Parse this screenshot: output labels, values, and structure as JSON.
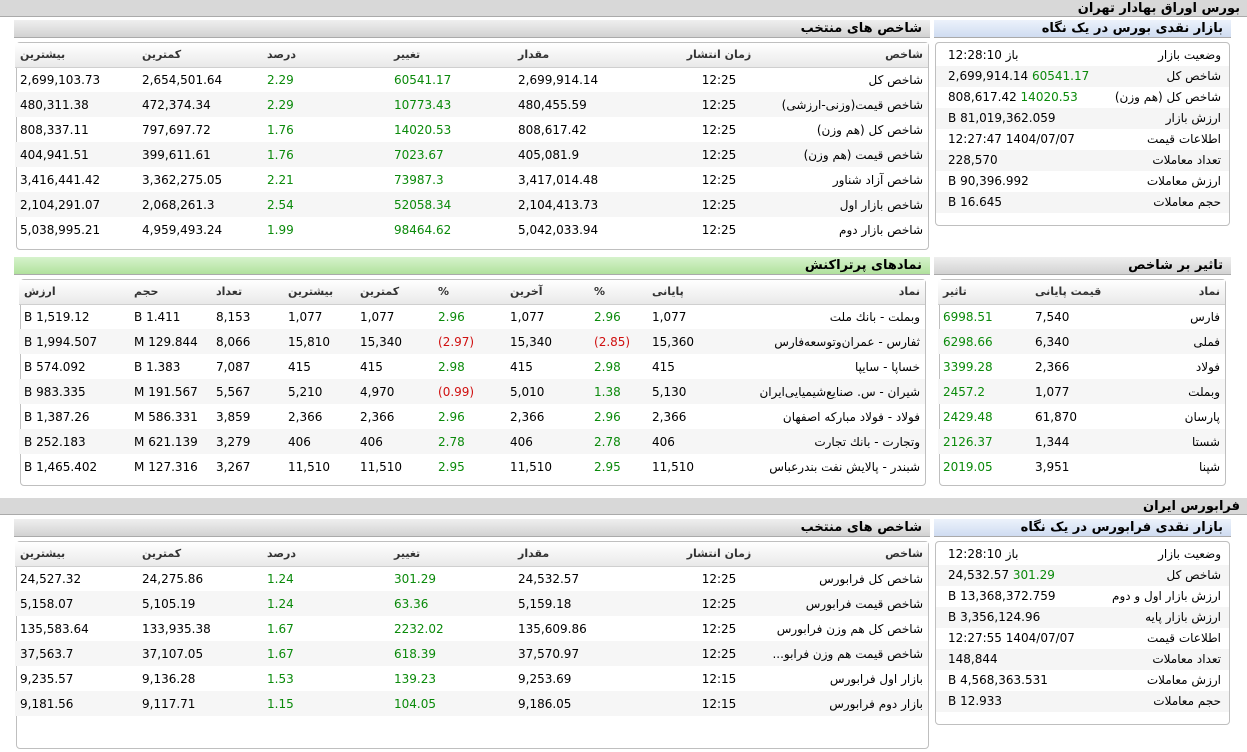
{
  "colors": {
    "positive": "#0a8a0a",
    "negative": "#d01010",
    "header_green": "#b1e19d",
    "header_blue": "#cfdcf1"
  },
  "tse": {
    "section_title": "بورس اوراق بهادار تهران",
    "indices": {
      "title": "شاخص های منتخب",
      "headers": {
        "name": "شاخص",
        "time": "زمان انتشار",
        "value": "مقدار",
        "change": "تغییر",
        "percent": "درصد",
        "min": "کمترین",
        "max": "بیشترین"
      },
      "rows": [
        {
          "name": "شاخص کل",
          "time": "12:25",
          "value": "2,699,914.14",
          "change": "60541.17",
          "percent": "2.29",
          "min": "2,654,501.64",
          "max": "2,699,103.73"
        },
        {
          "name": "شاخص قیمت(وزنی-ارزشی)",
          "time": "12:25",
          "value": "480,455.59",
          "change": "10773.43",
          "percent": "2.29",
          "min": "472,374.34",
          "max": "480,311.38"
        },
        {
          "name": "شاخص کل (هم وزن)",
          "time": "12:25",
          "value": "808,617.42",
          "change": "14020.53",
          "percent": "1.76",
          "min": "797,697.72",
          "max": "808,337.11"
        },
        {
          "name": "شاخص قیمت (هم وزن)",
          "time": "12:25",
          "value": "405,081.9",
          "change": "7023.67",
          "percent": "1.76",
          "min": "399,611.61",
          "max": "404,941.51"
        },
        {
          "name": "شاخص آزاد شناور",
          "time": "12:25",
          "value": "3,417,014.48",
          "change": "73987.3",
          "percent": "2.21",
          "min": "3,362,275.05",
          "max": "3,416,441.42"
        },
        {
          "name": "شاخص بازار اول",
          "time": "12:25",
          "value": "2,104,413.73",
          "change": "52058.34",
          "percent": "2.54",
          "min": "2,068,261.3",
          "max": "2,104,291.07"
        },
        {
          "name": "شاخص بازار دوم",
          "time": "12:25",
          "value": "5,042,033.94",
          "change": "98464.62",
          "percent": "1.99",
          "min": "4,959,493.24",
          "max": "5,038,995.21"
        }
      ]
    },
    "glance": {
      "title": "بازار نقدی بورس در یک نگاه",
      "rows": [
        {
          "label": "وضعیت بازار",
          "value": "باز 12:28:10",
          "change": ""
        },
        {
          "label": "شاخص کل",
          "value": "2,699,914.14",
          "change": "60541.17"
        },
        {
          "label": "شاخص کل (هم وزن)",
          "value": "808,617.42",
          "change": "14020.53"
        },
        {
          "label": "ارزش بازار",
          "value": "81,019,362.059 B",
          "change": ""
        },
        {
          "label": "اطلاعات قیمت",
          "value": "1404/07/07 12:27:47",
          "change": ""
        },
        {
          "label": "تعداد معاملات",
          "value": "228,570",
          "change": ""
        },
        {
          "label": "ارزش معاملات",
          "value": "90,396.992 B",
          "change": ""
        },
        {
          "label": "حجم معاملات",
          "value": "16.645 B",
          "change": ""
        }
      ]
    },
    "symbols": {
      "title": "نمادهای پرتراکنش",
      "headers": {
        "symbol": "نماد",
        "close": "پایانی",
        "close_pct": "%",
        "last": "آخرین",
        "last_pct": "%",
        "min": "کمترین",
        "max": "بیشترین",
        "count": "تعداد",
        "volume": "حجم",
        "value": "ارزش"
      },
      "rows": [
        {
          "symbol": "وبملت - بانك ملت",
          "close": "1,077",
          "close_pct": "2.96",
          "close_neg": false,
          "last": "1,077",
          "last_pct": "2.96",
          "last_neg": false,
          "min": "1,077",
          "max": "1,077",
          "count": "8,153",
          "volume": "1.411 B",
          "value": "1,519.12 B"
        },
        {
          "symbol": "ثفارس - عمران‌وتوسعه‌فارس",
          "close": "15,360",
          "close_pct": "(2.85)",
          "close_neg": true,
          "last": "15,340",
          "last_pct": "(2.97)",
          "last_neg": true,
          "min": "15,340",
          "max": "15,810",
          "count": "8,066",
          "volume": "129.844 M",
          "value": "1,994.507 B"
        },
        {
          "symbol": "خساپا - سايپا",
          "close": "415",
          "close_pct": "2.98",
          "close_neg": false,
          "last": "415",
          "last_pct": "2.98",
          "last_neg": false,
          "min": "415",
          "max": "415",
          "count": "7,087",
          "volume": "1.383 B",
          "value": "574.092 B"
        },
        {
          "symbol": "شیران - س. صنایع‌شیمیایی‌ایران",
          "close": "5,130",
          "close_pct": "1.38",
          "close_neg": false,
          "last": "5,010",
          "last_pct": "(0.99)",
          "last_neg": true,
          "min": "4,970",
          "max": "5,210",
          "count": "5,567",
          "volume": "191.567 M",
          "value": "983.335 B"
        },
        {
          "symbol": "فولاد - فولاد مباركه اصفهان",
          "close": "2,366",
          "close_pct": "2.96",
          "close_neg": false,
          "last": "2,366",
          "last_pct": "2.96",
          "last_neg": false,
          "min": "2,366",
          "max": "2,366",
          "count": "3,859",
          "volume": "586.331 M",
          "value": "1,387.26 B"
        },
        {
          "symbol": "وتجارت - بانك تجارت",
          "close": "406",
          "close_pct": "2.78",
          "close_neg": false,
          "last": "406",
          "last_pct": "2.78",
          "last_neg": false,
          "min": "406",
          "max": "406",
          "count": "3,279",
          "volume": "621.139 M",
          "value": "252.183 B"
        },
        {
          "symbol": "شبندر - پالايش نفت بندرعباس",
          "close": "11,510",
          "close_pct": "2.95",
          "close_neg": false,
          "last": "11,510",
          "last_pct": "2.95",
          "last_neg": false,
          "min": "11,510",
          "max": "11,510",
          "count": "3,267",
          "volume": "127.316 M",
          "value": "1,465.402 B"
        }
      ]
    },
    "impact": {
      "title": "تاثیر بر شاخص",
      "headers": {
        "symbol": "نماد",
        "close": "قیمت پایانی",
        "impact": "تاثیر"
      },
      "rows": [
        {
          "symbol": "فارس",
          "close": "7,540",
          "impact": "6998.51"
        },
        {
          "symbol": "فملی",
          "close": "6,340",
          "impact": "6298.66"
        },
        {
          "symbol": "فولاد",
          "close": "2,366",
          "impact": "3399.28"
        },
        {
          "symbol": "وبملت",
          "close": "1,077",
          "impact": "2457.2"
        },
        {
          "symbol": "پارسان",
          "close": "61,870",
          "impact": "2429.48"
        },
        {
          "symbol": "شستا",
          "close": "1,344",
          "impact": "2126.37"
        },
        {
          "symbol": "شپنا",
          "close": "3,951",
          "impact": "2019.05"
        }
      ]
    }
  },
  "ifb": {
    "section_title": "فرابورس ایران",
    "indices": {
      "title": "شاخص های منتخب",
      "headers": {
        "name": "شاخص",
        "time": "زمان انتشار",
        "value": "مقدار",
        "change": "تغییر",
        "percent": "درصد",
        "min": "کمترین",
        "max": "بیشترین"
      },
      "rows": [
        {
          "name": "شاخص کل فرابورس",
          "time": "12:25",
          "value": "24,532.57",
          "change": "301.29",
          "percent": "1.24",
          "min": "24,275.86",
          "max": "24,527.32"
        },
        {
          "name": "شاخص قیمت فرابورس",
          "time": "12:25",
          "value": "5,159.18",
          "change": "63.36",
          "percent": "1.24",
          "min": "5,105.19",
          "max": "5,158.07"
        },
        {
          "name": "شاخص کل هم وزن فرابورس",
          "time": "12:25",
          "value": "135,609.86",
          "change": "2232.02",
          "percent": "1.67",
          "min": "133,935.38",
          "max": "135,583.64"
        },
        {
          "name": "شاخص قیمت هم وزن فرابو...",
          "time": "12:25",
          "value": "37,570.97",
          "change": "618.39",
          "percent": "1.67",
          "min": "37,107.05",
          "max": "37,563.7"
        },
        {
          "name": "بازار اول فرابورس",
          "time": "12:15",
          "value": "9,253.69",
          "change": "139.23",
          "percent": "1.53",
          "min": "9,136.28",
          "max": "9,235.57"
        },
        {
          "name": "بازار دوم فرابورس",
          "time": "12:15",
          "value": "9,186.05",
          "change": "104.05",
          "percent": "1.15",
          "min": "9,117.71",
          "max": "9,181.56"
        }
      ]
    },
    "glance": {
      "title": "بازار نقدی فرابورس در یک نگاه",
      "rows": [
        {
          "label": "وضعیت بازار",
          "value": "باز 12:28:10",
          "change": ""
        },
        {
          "label": "شاخص کل",
          "value": "24,532.57",
          "change": "301.29"
        },
        {
          "label": "ارزش بازار اول و دوم",
          "value": "13,368,372.759 B",
          "change": ""
        },
        {
          "label": "ارزش بازار پایه",
          "value": "3,356,124.96 B",
          "change": ""
        },
        {
          "label": "اطلاعات قیمت",
          "value": "1404/07/07 12:27:55",
          "change": ""
        },
        {
          "label": "تعداد معاملات",
          "value": "148,844",
          "change": ""
        },
        {
          "label": "ارزش معاملات",
          "value": "4,568,363.531 B",
          "change": ""
        },
        {
          "label": "حجم معاملات",
          "value": "12.933 B",
          "change": ""
        }
      ]
    }
  }
}
